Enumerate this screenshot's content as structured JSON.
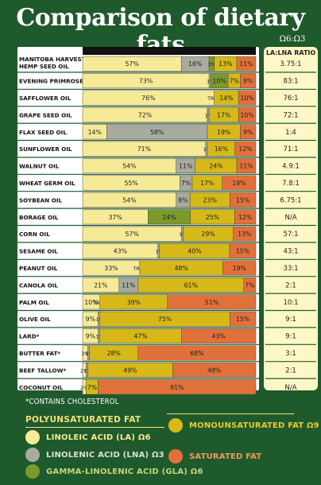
{
  "chart_data": {
    "type": "bar",
    "stacked": true,
    "orientation": "horizontal",
    "title": "Comparison of dietary fats",
    "ratio_header_top": "Ω6:Ω3",
    "ratio_header": "LA:LNA RATIO",
    "footnote": "*CONTAINS CHOLESTEROL",
    "colors": {
      "LA": "#f7ea96",
      "LNA": "#a8ab9e",
      "GLA": "#7c9a2c",
      "MONO": "#d6b919",
      "SAT": "#e1713a",
      "background": "#1f5a2c"
    },
    "legend": {
      "poly_title": "POLYUNSATURATED FAT",
      "la": "LINOLEIC ACID (LA) Ω6",
      "lna": "LINOLENIC ACID (LNA) Ω3",
      "gla": "GAMMA-LINOLENIC ACID (GLA) Ω6",
      "mono": "MONOUNSATURATED FAT Ω9",
      "sat": "SATURATED FAT"
    },
    "rows": [
      {
        "name": "MANITOBA HARVEST™ HEMP SEED OIL",
        "name1": "MANITOBA HARVEST™",
        "name2": "HEMP SEED OIL",
        "ratio": "3.75:1",
        "segs": [
          [
            "LA",
            57,
            "57%"
          ],
          [
            "LNA",
            16,
            "16%"
          ],
          [
            "GLA",
            3,
            "3%"
          ],
          [
            "MONO",
            13,
            "13%"
          ],
          [
            "SAT",
            11,
            "11%"
          ]
        ]
      },
      {
        "name": "EVENING PRIMROSE OIL",
        "ratio": "83:1",
        "segs": [
          [
            "LA",
            73,
            "73%"
          ],
          [
            "LNA",
            1,
            "1%"
          ],
          [
            "GLA",
            10,
            "10%"
          ],
          [
            "MONO",
            7,
            "7%"
          ],
          [
            "SAT",
            9,
            "9%"
          ]
        ]
      },
      {
        "name": "SAFFLOWER OIL",
        "ratio": "76:1",
        "segs": [
          [
            "LA",
            76,
            "76%"
          ],
          [
            "LNA",
            0,
            "TRACE"
          ],
          [
            "MONO",
            14,
            "14%"
          ],
          [
            "SAT",
            10,
            "10%"
          ]
        ]
      },
      {
        "name": "GRAPE SEED OIL",
        "ratio": "72:1",
        "segs": [
          [
            "LA",
            72,
            "72%"
          ],
          [
            "LNA",
            1,
            "1%"
          ],
          [
            "MONO",
            17,
            "17%"
          ],
          [
            "SAT",
            10,
            "10%"
          ]
        ]
      },
      {
        "name": "FLAX SEED OIL",
        "ratio": "1:4",
        "segs": [
          [
            "LA",
            14,
            "14%"
          ],
          [
            "LNA",
            58,
            "58%"
          ],
          [
            "MONO",
            19,
            "19%"
          ],
          [
            "SAT",
            9,
            "9%"
          ]
        ]
      },
      {
        "name": "SUNFLOWER OIL",
        "ratio": "71:1",
        "segs": [
          [
            "LA",
            71,
            "71%"
          ],
          [
            "LNA",
            1,
            "1%"
          ],
          [
            "MONO",
            16,
            "16%"
          ],
          [
            "SAT",
            12,
            "12%"
          ]
        ]
      },
      {
        "name": "WALNUT OIL",
        "ratio": "4.9:1",
        "segs": [
          [
            "LA",
            54,
            "54%"
          ],
          [
            "LNA",
            11,
            "11%"
          ],
          [
            "MONO",
            24,
            "24%"
          ],
          [
            "SAT",
            11,
            "11%"
          ]
        ]
      },
      {
        "name": "WHEAT GERM OIL",
        "ratio": "7.8:1",
        "segs": [
          [
            "LA",
            55,
            "55%"
          ],
          [
            "LNA",
            7,
            "7%"
          ],
          [
            "MONO",
            17,
            "17%"
          ],
          [
            "SAT",
            19,
            "19%"
          ]
        ]
      },
      {
        "name": "SOYBEAN OIL",
        "ratio": "6.75:1",
        "segs": [
          [
            "LA",
            54,
            "54%"
          ],
          [
            "LNA",
            8,
            "8%"
          ],
          [
            "MONO",
            23,
            "23%"
          ],
          [
            "SAT",
            15,
            "15%"
          ]
        ]
      },
      {
        "name": "BORAGE OIL",
        "ratio": "N/A",
        "segs": [
          [
            "LA",
            37,
            "37%"
          ],
          [
            "GLA",
            24,
            "24%"
          ],
          [
            "MONO",
            25,
            "25%"
          ],
          [
            "SAT",
            12,
            "12%"
          ]
        ]
      },
      {
        "name": "CORN OIL",
        "ratio": "57:1",
        "segs": [
          [
            "LA",
            57,
            "57%"
          ],
          [
            "LNA",
            1,
            "1%"
          ],
          [
            "MONO",
            29,
            "29%"
          ],
          [
            "SAT",
            13,
            "13%"
          ]
        ]
      },
      {
        "name": "SESAME OIL",
        "ratio": "43:1",
        "segs": [
          [
            "LA",
            43,
            "43%"
          ],
          [
            "LNA",
            1,
            "1%"
          ],
          [
            "MONO",
            40,
            "40%"
          ],
          [
            "SAT",
            15,
            "15%"
          ]
        ]
      },
      {
        "name": "PEANUT OIL",
        "ratio": "33:1",
        "segs": [
          [
            "LA",
            33,
            "33%"
          ],
          [
            "LNA",
            0,
            "TRACE"
          ],
          [
            "MONO",
            48,
            "48%"
          ],
          [
            "SAT",
            19,
            "19%"
          ]
        ]
      },
      {
        "name": "CANOLA OIL",
        "ratio": "2:1",
        "segs": [
          [
            "LA",
            21,
            "21%"
          ],
          [
            "LNA",
            11,
            "11%"
          ],
          [
            "MONO",
            61,
            "61%"
          ],
          [
            "SAT",
            7,
            "7%"
          ]
        ]
      },
      {
        "name": "PALM OIL",
        "ratio": "10:1",
        "segs": [
          [
            "LA",
            10,
            "10%"
          ],
          [
            "LNA",
            0,
            "TRACE"
          ],
          [
            "MONO",
            39,
            "39%"
          ],
          [
            "SAT",
            51,
            "51%"
          ]
        ]
      },
      {
        "name": "OLIVE OIL",
        "ratio": "9:1",
        "segs": [
          [
            "LA",
            9,
            "9%"
          ],
          [
            "LNA",
            1,
            "1%"
          ],
          [
            "MONO",
            75,
            "75%"
          ],
          [
            "SAT",
            15,
            "15%"
          ]
        ]
      },
      {
        "name": "LARD*",
        "ratio": "9:1",
        "segs": [
          [
            "LA",
            9,
            "9%"
          ],
          [
            "LNA",
            1,
            "1%"
          ],
          [
            "MONO",
            47,
            "47%"
          ],
          [
            "SAT",
            43,
            "43%"
          ]
        ]
      },
      {
        "name": "BUTTER FAT*",
        "ratio": "3:1",
        "segs": [
          [
            "LA",
            3,
            "3%"
          ],
          [
            "LNA",
            1,
            "1%"
          ],
          [
            "MONO",
            28,
            "28%"
          ],
          [
            "SAT",
            68,
            "68%"
          ]
        ]
      },
      {
        "name": "BEEF TALLOW*",
        "ratio": "2:1",
        "segs": [
          [
            "LA",
            2,
            "2%"
          ],
          [
            "LNA",
            1,
            "1%"
          ],
          [
            "MONO",
            49,
            "49%"
          ],
          [
            "SAT",
            48,
            "48%"
          ]
        ]
      },
      {
        "name": "COCONUT OIL",
        "ratio": "N/A",
        "segs": [
          [
            "LA",
            2,
            "2%"
          ],
          [
            "MONO",
            7,
            "7%"
          ],
          [
            "SAT",
            91,
            "91%"
          ]
        ]
      }
    ]
  }
}
